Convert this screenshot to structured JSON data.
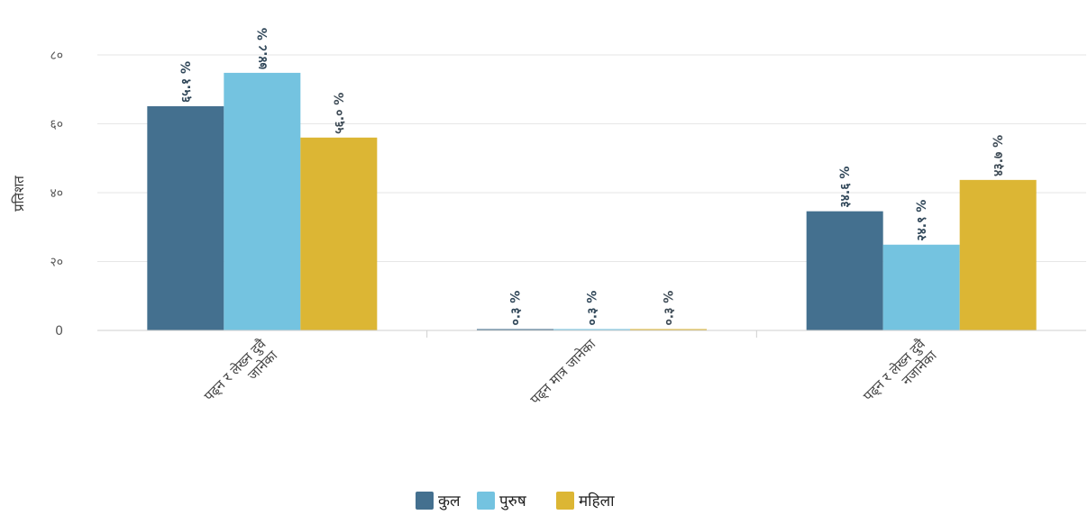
{
  "chart_data": {
    "type": "bar",
    "ylabel": "प्रतिशत",
    "ylim": [
      0,
      80
    ],
    "yticks": [
      0,
      20,
      40,
      60,
      80
    ],
    "ytick_labels": [
      "0",
      "२०",
      "४०",
      "६०",
      "८०"
    ],
    "grid": true,
    "legend_position": "bottom",
    "categories": [
      [
        "पढ्न र लेख्न दुवै",
        "जानेका"
      ],
      [
        "पढ्न मात्र जानेका"
      ],
      [
        "पढ्न र लेख्न दुवै",
        "नजानेका"
      ]
    ],
    "series": [
      {
        "name": "कुल",
        "color": "#44708f",
        "values": [
          65.1,
          0.3,
          34.6
        ],
        "labels": [
          "६५.१ %",
          "०.३ %",
          "३४.६ %"
        ]
      },
      {
        "name": "पुरुष",
        "color": "#74c3e0",
        "values": [
          74.8,
          0.3,
          24.9
        ],
        "labels": [
          "७४.८ %",
          "०.३ %",
          "२४.९ %"
        ]
      },
      {
        "name": "महिला",
        "color": "#dcb634",
        "values": [
          56.0,
          0.3,
          43.7
        ],
        "labels": [
          "५६.० %",
          "०.३ %",
          "४३.७ %"
        ]
      }
    ]
  }
}
